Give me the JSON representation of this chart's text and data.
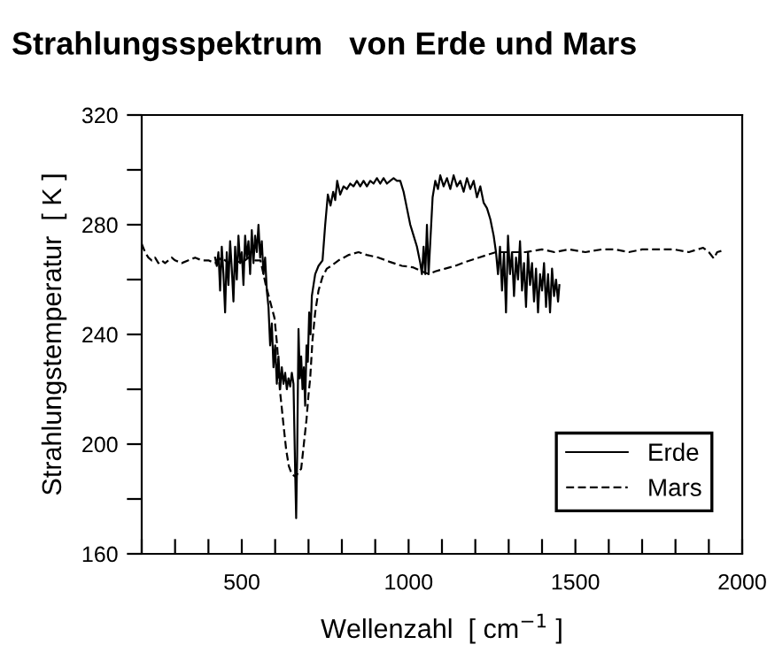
{
  "chart_data": {
    "type": "line",
    "title": "Strahlungsspektrum   von Erde und Mars",
    "xlabel": "Wellenzahl  [ cm$^{−1}$ ]",
    "ylabel": "Strahlungstemperatur  [ K ]",
    "xlim": [
      200,
      2000
    ],
    "ylim": [
      160,
      320
    ],
    "xticks": [
      {
        "value": 200,
        "label": null
      },
      {
        "value": 300,
        "label": null
      },
      {
        "value": 400,
        "label": null
      },
      500,
      {
        "value": 600,
        "label": null
      },
      {
        "value": 700,
        "label": null
      },
      {
        "value": 800,
        "label": null
      },
      {
        "value": 900,
        "label": null
      },
      1000,
      {
        "value": 1100,
        "label": null
      },
      {
        "value": 1200,
        "label": null
      },
      {
        "value": 1300,
        "label": null
      },
      {
        "value": 1400,
        "label": null
      },
      1500,
      {
        "value": 1600,
        "label": null
      },
      {
        "value": 1700,
        "label": null
      },
      {
        "value": 1800,
        "label": null
      },
      {
        "value": 1900,
        "label": null
      },
      2000
    ],
    "yticks": [
      160,
      {
        "value": 180,
        "label": null
      },
      200,
      {
        "value": 220,
        "label": null
      },
      240,
      {
        "value": 260,
        "label": null
      },
      280,
      {
        "value": 300,
        "label": null
      },
      320
    ],
    "grid": false,
    "legend": "bottom right",
    "marker": "none",
    "series": [
      {
        "name": "Erde",
        "color": "#000000",
        "line_style": "solid",
        "x": [
          420,
          425,
          430,
          435,
          440,
          445,
          450,
          455,
          460,
          465,
          470,
          475,
          480,
          485,
          490,
          495,
          500,
          505,
          510,
          515,
          520,
          525,
          530,
          535,
          540,
          545,
          550,
          555,
          560,
          565,
          570,
          575,
          580,
          585,
          590,
          595,
          600,
          605,
          610,
          615,
          620,
          625,
          630,
          635,
          640,
          645,
          650,
          655,
          660,
          663,
          666,
          670,
          674,
          678,
          682,
          686,
          690,
          694,
          698,
          702,
          706,
          710,
          715,
          720,
          730,
          742,
          750,
          758,
          766,
          774,
          780,
          786,
          795,
          805,
          815,
          825,
          835,
          845,
          855,
          865,
          875,
          885,
          895,
          905,
          915,
          925,
          935,
          945,
          955,
          965,
          975,
          985,
          995,
          1005,
          1015,
          1025,
          1035,
          1040,
          1045,
          1050,
          1055,
          1060,
          1066,
          1072,
          1080,
          1088,
          1095,
          1105,
          1115,
          1125,
          1135,
          1145,
          1155,
          1165,
          1175,
          1185,
          1195,
          1205,
          1215,
          1225,
          1235,
          1245,
          1255,
          1262,
          1268,
          1274,
          1280,
          1286,
          1292,
          1298,
          1304,
          1310,
          1316,
          1322,
          1328,
          1334,
          1340,
          1346,
          1352,
          1358,
          1364,
          1370,
          1376,
          1382,
          1388,
          1394,
          1400,
          1406,
          1412,
          1418,
          1424,
          1430,
          1436,
          1442,
          1448,
          1452
        ],
        "values": [
          268,
          265,
          270,
          256,
          272,
          262,
          248,
          270,
          258,
          274,
          264,
          252,
          272,
          260,
          276,
          266,
          270,
          258,
          276,
          268,
          274,
          262,
          278,
          266,
          276,
          270,
          280,
          268,
          274,
          262,
          268,
          256,
          250,
          236,
          244,
          228,
          236,
          222,
          232,
          220,
          228,
          222,
          226,
          220,
          224,
          221,
          226,
          222,
          190,
          173,
          196,
          242,
          224,
          232,
          220,
          228,
          214,
          236,
          230,
          248,
          240,
          254,
          258,
          262,
          265,
          267,
          280,
          291,
          287,
          292,
          289,
          296,
          291,
          294,
          293,
          295,
          294,
          296,
          294,
          296,
          294,
          296,
          295,
          297,
          295,
          297,
          295,
          296,
          297,
          296,
          296,
          292,
          286,
          280,
          276,
          272,
          266,
          262,
          272,
          262,
          280,
          262,
          276,
          290,
          296,
          293,
          298,
          294,
          297,
          293,
          298,
          294,
          296,
          292,
          297,
          293,
          296,
          290,
          294,
          288,
          286,
          282,
          276,
          270,
          262,
          272,
          256,
          270,
          248,
          276,
          262,
          270,
          254,
          268,
          260,
          274,
          256,
          266,
          250,
          270,
          258,
          266,
          252,
          264,
          248,
          262,
          256,
          266,
          250,
          262,
          248,
          264,
          254,
          260,
          252,
          258
        ]
      },
      {
        "name": "Mars",
        "color": "#000000",
        "line_style": "dashed",
        "x": [
          200,
          210,
          220,
          230,
          240,
          250,
          260,
          270,
          280,
          290,
          300,
          320,
          340,
          360,
          380,
          400,
          420,
          440,
          460,
          480,
          500,
          520,
          540,
          556,
          565,
          572,
          585,
          598,
          606,
          614,
          620,
          625,
          633,
          641,
          650,
          662,
          670,
          678,
          686,
          694,
          700,
          705,
          712,
          720,
          730,
          742,
          755,
          768,
          790,
          821,
          850,
          874,
          910,
          943,
          980,
          1012,
          1040,
          1060,
          1080,
          1110,
          1140,
          1172,
          1210,
          1262,
          1300,
          1350,
          1400,
          1437,
          1480,
          1530,
          1580,
          1618,
          1660,
          1700,
          1750,
          1795,
          1840,
          1883,
          1900,
          1915,
          1925,
          1942
        ],
        "values": [
          273,
          270,
          268,
          267,
          268,
          266,
          267,
          266,
          267,
          268,
          267,
          266,
          267,
          268,
          267,
          267,
          266,
          268,
          266,
          267,
          266,
          268,
          267,
          267,
          262,
          258,
          252,
          246,
          236,
          220,
          213,
          207,
          198,
          192,
          189,
          188,
          190,
          191,
          200,
          209,
          218,
          224,
          238,
          248,
          256,
          261,
          264,
          265,
          267,
          269,
          270,
          269,
          268,
          266.5,
          265,
          264.5,
          263,
          262,
          263,
          264,
          265,
          266.5,
          268,
          270,
          270,
          270,
          271,
          270,
          271,
          270,
          271,
          271,
          270,
          271,
          271,
          271,
          270,
          271.6,
          270,
          267.7,
          270,
          270.6
        ]
      }
    ]
  }
}
